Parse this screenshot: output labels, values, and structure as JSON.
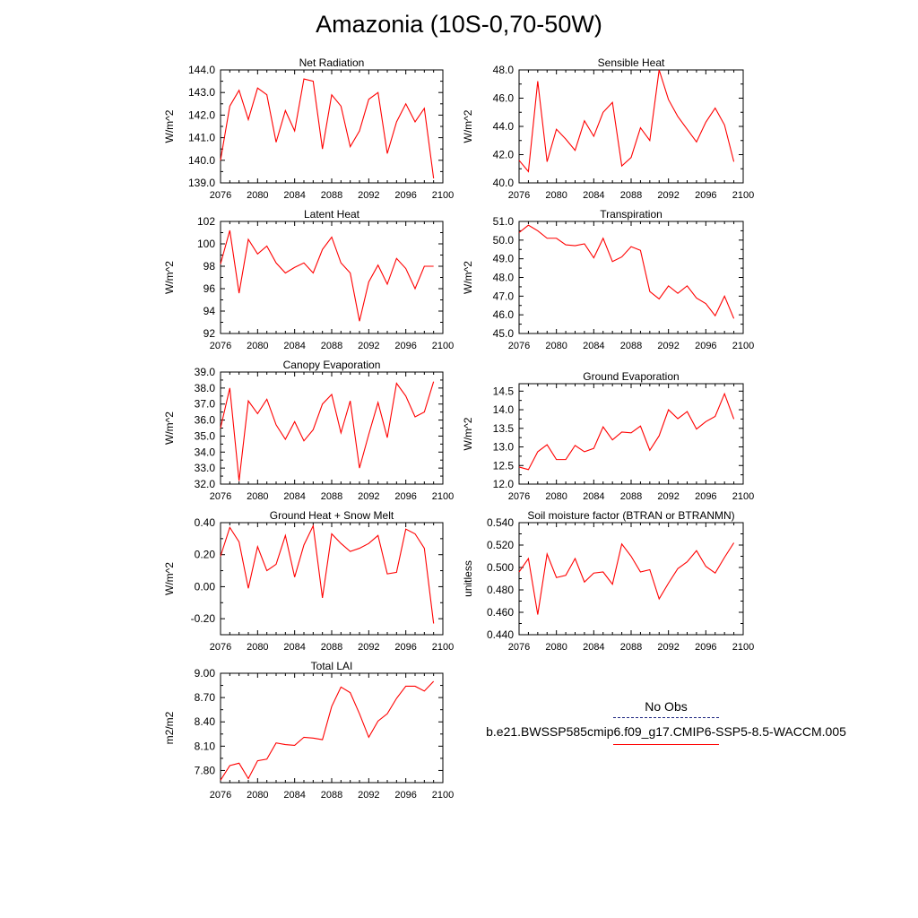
{
  "title": "Amazonia (10S-0,70-50W)",
  "legend": {
    "obs_label": "No Obs",
    "case_label": "b.e21.BWSSP585cmip6.f09_g17.CMIP6-SSP5-8.5-WACCM.005",
    "obs_color": "#1a237e",
    "case_color": "#ff0000"
  },
  "chart_data": [
    {
      "type": "line",
      "title": "Net Radiation",
      "ylabel": "W/m^2",
      "xlim": [
        2076,
        2100
      ],
      "ylim": [
        139.0,
        144.0
      ],
      "xticks": [
        2076,
        2080,
        2084,
        2088,
        2092,
        2096,
        2100
      ],
      "yticks": [
        139.0,
        140.0,
        141.0,
        142.0,
        143.0,
        144.0
      ],
      "ydecimals": 1,
      "color": "#ff0000",
      "x": [
        2076,
        2077,
        2078,
        2079,
        2080,
        2081,
        2082,
        2083,
        2084,
        2085,
        2086,
        2087,
        2088,
        2089,
        2090,
        2091,
        2092,
        2093,
        2094,
        2095,
        2096,
        2097,
        2098,
        2099
      ],
      "y": [
        140.0,
        142.4,
        143.1,
        141.8,
        143.2,
        142.9,
        140.8,
        142.2,
        141.3,
        143.6,
        143.5,
        140.5,
        142.9,
        142.4,
        140.6,
        141.3,
        142.7,
        143.0,
        140.3,
        141.7,
        142.5,
        141.7,
        142.3,
        139.2
      ]
    },
    {
      "type": "line",
      "title": "Sensible Heat",
      "ylabel": "W/m^2",
      "xlim": [
        2076,
        2100
      ],
      "ylim": [
        40.0,
        48.0
      ],
      "xticks": [
        2076,
        2080,
        2084,
        2088,
        2092,
        2096,
        2100
      ],
      "yticks": [
        40.0,
        42.0,
        44.0,
        46.0,
        48.0
      ],
      "ydecimals": 1,
      "color": "#ff0000",
      "x": [
        2076,
        2077,
        2078,
        2079,
        2080,
        2081,
        2082,
        2083,
        2084,
        2085,
        2086,
        2087,
        2088,
        2089,
        2090,
        2091,
        2092,
        2093,
        2094,
        2095,
        2096,
        2097,
        2098,
        2099
      ],
      "y": [
        41.6,
        40.8,
        47.2,
        41.5,
        43.8,
        43.1,
        42.3,
        44.4,
        43.3,
        45.0,
        45.7,
        41.2,
        41.8,
        43.9,
        43.0,
        48.0,
        45.9,
        44.7,
        43.8,
        42.9,
        44.3,
        45.3,
        44.1,
        41.5
      ]
    },
    {
      "type": "line",
      "title": "Latent Heat",
      "ylabel": "W/m^2",
      "xlim": [
        2076,
        2100
      ],
      "ylim": [
        92,
        102
      ],
      "xticks": [
        2076,
        2080,
        2084,
        2088,
        2092,
        2096,
        2100
      ],
      "yticks": [
        92,
        94,
        96,
        98,
        100,
        102
      ],
      "ydecimals": 0,
      "color": "#ff0000",
      "x": [
        2076,
        2077,
        2078,
        2079,
        2080,
        2081,
        2082,
        2083,
        2084,
        2085,
        2086,
        2087,
        2088,
        2089,
        2090,
        2091,
        2092,
        2093,
        2094,
        2095,
        2096,
        2097,
        2098,
        2099
      ],
      "y": [
        98.2,
        101.2,
        95.6,
        100.4,
        99.1,
        99.8,
        98.3,
        97.4,
        97.9,
        98.3,
        97.4,
        99.5,
        100.6,
        98.3,
        97.4,
        93.1,
        96.6,
        98.1,
        96.4,
        98.7,
        97.8,
        96.0,
        98.0,
        98.0
      ]
    },
    {
      "type": "line",
      "title": "Transpiration",
      "ylabel": "W/m^2",
      "xlim": [
        2076,
        2100
      ],
      "ylim": [
        45.0,
        51.0
      ],
      "xticks": [
        2076,
        2080,
        2084,
        2088,
        2092,
        2096,
        2100
      ],
      "yticks": [
        45.0,
        46.0,
        47.0,
        48.0,
        49.0,
        50.0,
        51.0
      ],
      "ydecimals": 1,
      "color": "#ff0000",
      "x": [
        2076,
        2077,
        2078,
        2079,
        2080,
        2081,
        2082,
        2083,
        2084,
        2085,
        2086,
        2087,
        2088,
        2089,
        2090,
        2091,
        2092,
        2093,
        2094,
        2095,
        2096,
        2097,
        2098,
        2099
      ],
      "y": [
        50.4,
        50.8,
        50.5,
        50.1,
        50.1,
        49.75,
        49.7,
        49.8,
        49.05,
        50.1,
        48.85,
        49.1,
        49.65,
        49.45,
        47.25,
        46.85,
        47.55,
        47.15,
        47.55,
        46.9,
        46.6,
        45.95,
        47.0,
        45.8
      ]
    },
    {
      "type": "line",
      "title": "Canopy Evaporation",
      "ylabel": "W/m^2",
      "xlim": [
        2076,
        2100
      ],
      "ylim": [
        32.0,
        39.0
      ],
      "xticks": [
        2076,
        2080,
        2084,
        2088,
        2092,
        2096,
        2100
      ],
      "yticks": [
        32.0,
        33.0,
        34.0,
        35.0,
        36.0,
        37.0,
        38.0,
        39.0
      ],
      "ydecimals": 1,
      "color": "#ff0000",
      "x": [
        2076,
        2077,
        2078,
        2079,
        2080,
        2081,
        2082,
        2083,
        2084,
        2085,
        2086,
        2087,
        2088,
        2089,
        2090,
        2091,
        2092,
        2093,
        2094,
        2095,
        2096,
        2097,
        2098,
        2099
      ],
      "y": [
        35.5,
        38.0,
        32.2,
        37.2,
        36.4,
        37.3,
        35.7,
        34.8,
        35.9,
        34.7,
        35.4,
        37.0,
        37.6,
        35.2,
        37.2,
        33.0,
        35.1,
        37.1,
        34.9,
        38.3,
        37.5,
        36.2,
        36.5,
        38.4
      ]
    },
    {
      "type": "line",
      "title": "Ground Evaporation",
      "ylabel": "W/m^2",
      "xlim": [
        2076,
        2100
      ],
      "ylim": [
        12.0,
        14.7
      ],
      "xticks": [
        2076,
        2080,
        2084,
        2088,
        2092,
        2096,
        2100
      ],
      "yticks": [
        12.0,
        12.5,
        13.0,
        13.5,
        14.0,
        14.5
      ],
      "ydecimals": 1,
      "color": "#ff0000",
      "x": [
        2076,
        2077,
        2078,
        2079,
        2080,
        2081,
        2082,
        2083,
        2084,
        2085,
        2086,
        2087,
        2088,
        2089,
        2090,
        2091,
        2092,
        2093,
        2094,
        2095,
        2096,
        2097,
        2098,
        2099
      ],
      "y": [
        12.46,
        12.39,
        12.87,
        13.06,
        12.66,
        12.66,
        13.04,
        12.87,
        12.96,
        13.54,
        13.19,
        13.4,
        13.38,
        13.56,
        12.91,
        13.3,
        14.0,
        13.76,
        13.95,
        13.48,
        13.68,
        13.82,
        14.43,
        13.75
      ]
    },
    {
      "type": "line",
      "title": "Ground Heat + Snow Melt",
      "ylabel": "W/m^2",
      "xlim": [
        2076,
        2100
      ],
      "ylim": [
        -0.3,
        0.4
      ],
      "xticks": [
        2076,
        2080,
        2084,
        2088,
        2092,
        2096,
        2100
      ],
      "yticks": [
        -0.2,
        0.0,
        0.2,
        0.4
      ],
      "ydecimals": 2,
      "color": "#ff0000",
      "x": [
        2076,
        2077,
        2078,
        2079,
        2080,
        2081,
        2082,
        2083,
        2084,
        2085,
        2086,
        2087,
        2088,
        2089,
        2090,
        2091,
        2092,
        2093,
        2094,
        2095,
        2096,
        2097,
        2098,
        2099
      ],
      "y": [
        0.19,
        0.37,
        0.28,
        -0.01,
        0.25,
        0.1,
        0.14,
        0.32,
        0.06,
        0.26,
        0.38,
        -0.07,
        0.33,
        0.27,
        0.22,
        0.24,
        0.27,
        0.32,
        0.08,
        0.09,
        0.36,
        0.33,
        0.24,
        -0.23
      ]
    },
    {
      "type": "line",
      "title": "Soil moisture factor (BTRAN or BTRANMN)",
      "ylabel": "unitless",
      "xlim": [
        2076,
        2100
      ],
      "ylim": [
        0.44,
        0.54
      ],
      "xticks": [
        2076,
        2080,
        2084,
        2088,
        2092,
        2096,
        2100
      ],
      "yticks": [
        0.44,
        0.46,
        0.48,
        0.5,
        0.52,
        0.54
      ],
      "ydecimals": 3,
      "color": "#ff0000",
      "x": [
        2076,
        2077,
        2078,
        2079,
        2080,
        2081,
        2082,
        2083,
        2084,
        2085,
        2086,
        2087,
        2088,
        2089,
        2090,
        2091,
        2092,
        2093,
        2094,
        2095,
        2096,
        2097,
        2098,
        2099
      ],
      "y": [
        0.496,
        0.508,
        0.458,
        0.512,
        0.491,
        0.493,
        0.508,
        0.487,
        0.495,
        0.496,
        0.485,
        0.521,
        0.51,
        0.496,
        0.498,
        0.472,
        0.486,
        0.499,
        0.505,
        0.515,
        0.501,
        0.495,
        0.509,
        0.522
      ]
    },
    {
      "type": "line",
      "title": "Total LAI",
      "ylabel": "m2/m2",
      "xlim": [
        2076,
        2100
      ],
      "ylim": [
        7.65,
        9.0
      ],
      "xticks": [
        2076,
        2080,
        2084,
        2088,
        2092,
        2096,
        2100
      ],
      "yticks": [
        7.8,
        8.1,
        8.4,
        8.7,
        9.0
      ],
      "ydecimals": 2,
      "color": "#ff0000",
      "x": [
        2076,
        2077,
        2078,
        2079,
        2080,
        2081,
        2082,
        2083,
        2084,
        2085,
        2086,
        2087,
        2088,
        2089,
        2090,
        2091,
        2092,
        2093,
        2094,
        2095,
        2096,
        2097,
        2098,
        2099
      ],
      "y": [
        7.68,
        7.86,
        7.89,
        7.7,
        7.92,
        7.94,
        8.14,
        8.12,
        8.11,
        8.21,
        8.2,
        8.18,
        8.59,
        8.83,
        8.76,
        8.5,
        8.21,
        8.41,
        8.5,
        8.69,
        8.84,
        8.84,
        8.78,
        8.9
      ]
    }
  ]
}
